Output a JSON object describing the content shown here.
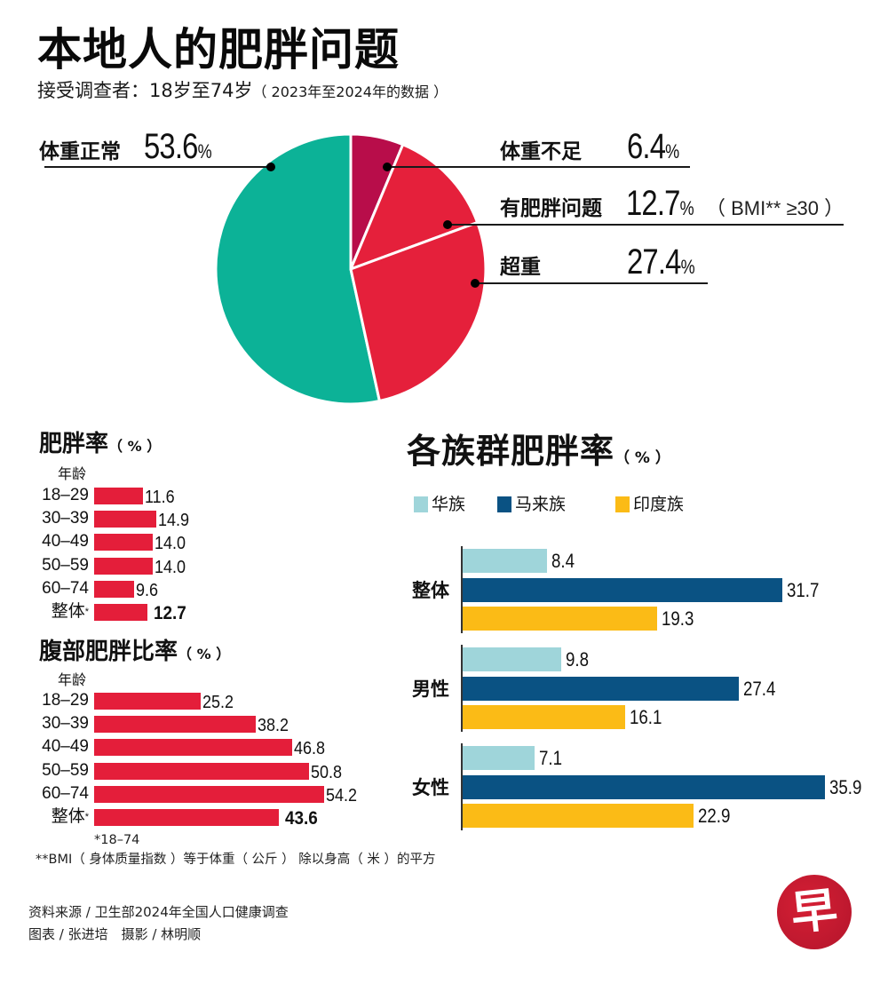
{
  "header": {
    "title": "本地人的肥胖问题",
    "subtitle": "接受调查者：18岁至74岁",
    "subtitle_note": "（ 2023年至2024年的数据 ）"
  },
  "pie": {
    "segments": [
      {
        "label": "体重正常",
        "value": "53.6",
        "pct": "%",
        "color": "#0cb297"
      },
      {
        "label": "体重不足",
        "value": "6.4",
        "pct": "%",
        "color": "#b80d4a"
      },
      {
        "label": "有肥胖问题",
        "value": "12.7",
        "pct": "%",
        "note": "（ BMI** ≥30 ）",
        "color": "#e5203b"
      },
      {
        "label": "超重",
        "value": "27.4",
        "pct": "%",
        "color": "#e5203b"
      }
    ]
  },
  "obesity_rate": {
    "title": "肥胖率",
    "unit": "（ % ）",
    "age_header": "年龄",
    "rows": [
      {
        "label": "18–29",
        "value": "11.6"
      },
      {
        "label": "30–39",
        "value": "14.9"
      },
      {
        "label": "40–49",
        "value": "14.0"
      },
      {
        "label": "50–59",
        "value": "14.0"
      },
      {
        "label": "60–74",
        "value": "9.6"
      },
      {
        "label": "整体",
        "asterisk": "*",
        "value": "12.7"
      }
    ]
  },
  "abdominal_rate": {
    "title": "腹部肥胖比率",
    "unit": "（ % ）",
    "age_header": "年龄",
    "rows": [
      {
        "label": "18–29",
        "value": "25.2"
      },
      {
        "label": "30–39",
        "value": "38.2"
      },
      {
        "label": "40–49",
        "value": "46.8"
      },
      {
        "label": "50–59",
        "value": "50.8"
      },
      {
        "label": "60–74",
        "value": "54.2"
      },
      {
        "label": "整体",
        "asterisk": "*",
        "value": "43.6"
      }
    ]
  },
  "ethnic": {
    "title": "各族群肥胖率",
    "unit": "（ % ）",
    "legend": [
      {
        "label": "华族",
        "color": "#9fd5da"
      },
      {
        "label": "马来族",
        "color": "#0a5283"
      },
      {
        "label": "印度族",
        "color": "#fbbb16"
      }
    ],
    "groups": [
      {
        "label": "整体",
        "values": [
          "8.4",
          "31.7",
          "19.3"
        ]
      },
      {
        "label": "男性",
        "values": [
          "9.8",
          "27.4",
          "16.1"
        ]
      },
      {
        "label": "女性",
        "values": [
          "7.1",
          "35.9",
          "22.9"
        ]
      }
    ]
  },
  "footnotes": {
    "age_range": "*18–74",
    "bmi_def": "**BMI（ 身体质量指数 ）等于体重（ 公斤 ） 除以身高（ 米 ）的平方"
  },
  "credits": {
    "source": "资料来源 / 卫生部2024年全国人口健康调查",
    "byline": "图表 / 张进培　摄影 / 林明顺"
  },
  "logo": {
    "glyph": "早",
    "color": "#c8192f"
  },
  "chart_data": [
    {
      "type": "pie",
      "title": "本地人的肥胖问题",
      "subtitle": "接受调查者：18岁至74岁（2023年至2024年的数据）",
      "categories": [
        "体重正常",
        "体重不足",
        "有肥胖问题 (BMI** ≥30)",
        "超重"
      ],
      "values": [
        53.6,
        6.4,
        12.7,
        27.4
      ],
      "unit": "%",
      "colors": [
        "#0cb297",
        "#b80d4a",
        "#e5203b",
        "#e5203b"
      ]
    },
    {
      "type": "bar",
      "orientation": "horizontal",
      "title": "肥胖率（%）",
      "ylabel": "年龄",
      "categories": [
        "18–29",
        "30–39",
        "40–49",
        "50–59",
        "60–74",
        "整体*"
      ],
      "values": [
        11.6,
        14.9,
        14.0,
        14.0,
        9.6,
        12.7
      ],
      "unit": "%"
    },
    {
      "type": "bar",
      "orientation": "horizontal",
      "title": "腹部肥胖比率（%）",
      "ylabel": "年龄",
      "categories": [
        "18–29",
        "30–39",
        "40–49",
        "50–59",
        "60–74",
        "整体*"
      ],
      "values": [
        25.2,
        38.2,
        46.8,
        50.8,
        54.2,
        43.6
      ],
      "unit": "%"
    },
    {
      "type": "bar",
      "orientation": "horizontal",
      "title": "各族群肥胖率（%）",
      "categories": [
        "整体",
        "男性",
        "女性"
      ],
      "series": [
        {
          "name": "华族",
          "values": [
            8.4,
            9.8,
            7.1
          ],
          "color": "#9fd5da"
        },
        {
          "name": "马来族",
          "values": [
            31.7,
            27.4,
            35.9
          ],
          "color": "#0a5283"
        },
        {
          "name": "印度族",
          "values": [
            19.3,
            16.1,
            22.9
          ],
          "color": "#fbbb16"
        }
      ],
      "legend_position": "top",
      "unit": "%"
    }
  ]
}
